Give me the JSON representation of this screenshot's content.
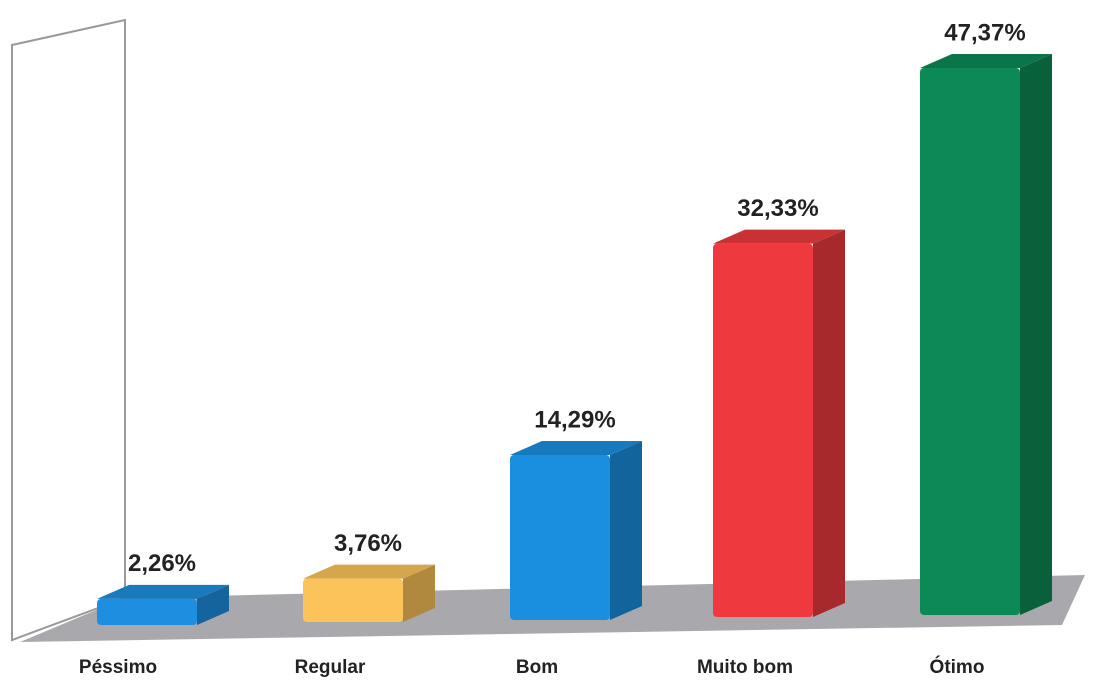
{
  "chart_data": {
    "type": "bar3d",
    "categories": [
      "Péssimo",
      "Regular",
      "Bom",
      "Muito bom",
      "Ótimo"
    ],
    "values": [
      2.26,
      3.76,
      14.29,
      32.33,
      47.37
    ],
    "value_labels": [
      "2,26%",
      "3,76%",
      "14,29%",
      "32,33%",
      "47,37%"
    ],
    "colors": [
      "#1e8fe0",
      "#fcc35a",
      "#1a8fe0",
      "#ee3a3e",
      "#0b8a55"
    ]
  }
}
